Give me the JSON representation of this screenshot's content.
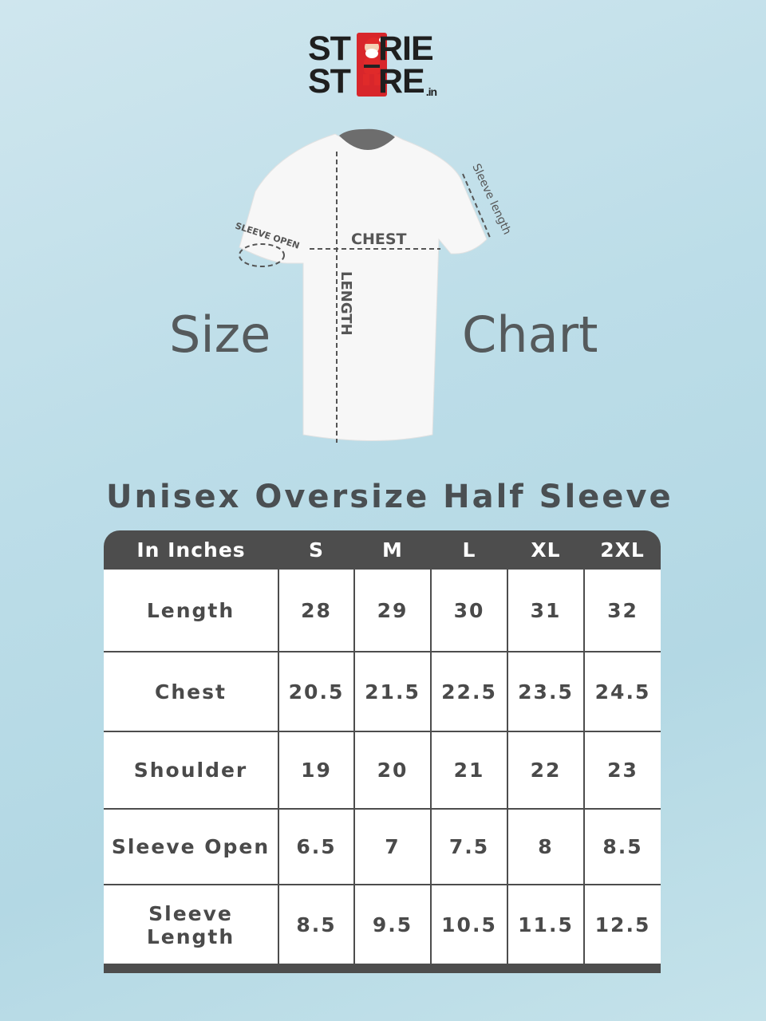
{
  "brand": {
    "line1_left": "ST",
    "line1_right": "RIE",
    "line2_left": "ST",
    "line2_right": "RE",
    "suffix": ".in",
    "mascot": "santa-icon",
    "accent": "#d8262b"
  },
  "hero": {
    "word_left": "Size",
    "word_right": "Chart",
    "labels": {
      "chest": "CHEST",
      "length": "LENGTH",
      "sleeve_open": "SLEEVE OPEN",
      "sleeve_length": "Sleeve length"
    }
  },
  "title": "Unisex Oversize Half Sleeve",
  "table": {
    "headers": [
      "In Inches",
      "S",
      "M",
      "L",
      "XL",
      "2XL"
    ],
    "rows": [
      {
        "label": "Length",
        "values": [
          "28",
          "29",
          "30",
          "31",
          "32"
        ]
      },
      {
        "label": "Chest",
        "values": [
          "20.5",
          "21.5",
          "22.5",
          "23.5",
          "24.5"
        ]
      },
      {
        "label": "Shoulder",
        "values": [
          "19",
          "20",
          "21",
          "22",
          "23"
        ]
      },
      {
        "label": "Sleeve Open",
        "values": [
          "6.5",
          "7",
          "7.5",
          "8",
          "8.5"
        ]
      },
      {
        "label": "Sleeve Length",
        "values": [
          "8.5",
          "9.5",
          "10.5",
          "11.5",
          "12.5"
        ]
      }
    ]
  }
}
